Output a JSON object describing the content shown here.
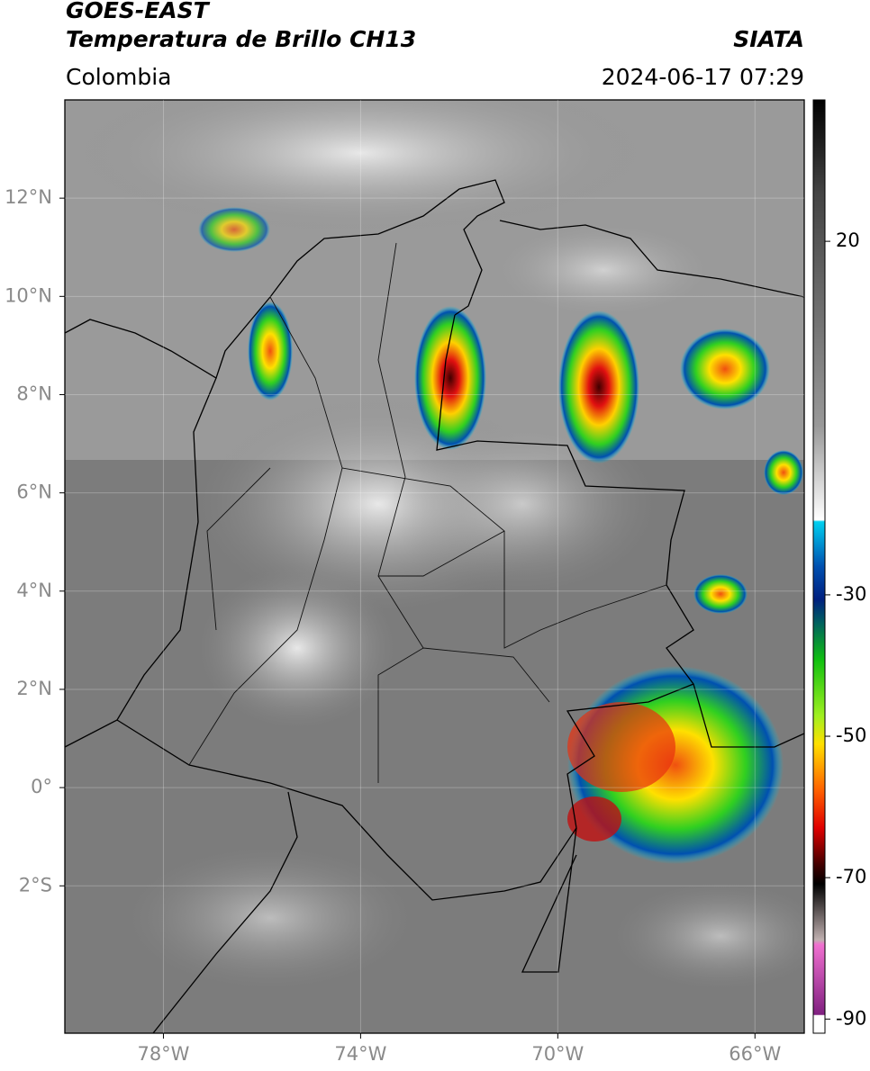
{
  "header": {
    "title": "GOES-EAST",
    "subtitle": "Temperatura de Brillo CH13",
    "source": "SIATA",
    "region": "Colombia",
    "timestamp": "2024-06-17 07:29"
  },
  "map": {
    "xlim": [
      -80,
      -65
    ],
    "ylim": [
      -5,
      14
    ],
    "xticks": [
      {
        "value": -78,
        "label": "78°W"
      },
      {
        "value": -74,
        "label": "74°W"
      },
      {
        "value": -70,
        "label": "70°W"
      },
      {
        "value": -66,
        "label": "66°W"
      }
    ],
    "yticks": [
      {
        "value": 12,
        "label": "12°N"
      },
      {
        "value": 10,
        "label": "10°N"
      },
      {
        "value": 8,
        "label": "8°N"
      },
      {
        "value": 6,
        "label": "6°N"
      },
      {
        "value": 4,
        "label": "4°N"
      },
      {
        "value": 2,
        "label": "2°N"
      },
      {
        "value": 0,
        "label": "0°"
      },
      {
        "value": -2,
        "label": "2°S"
      }
    ],
    "grid": true
  },
  "colorbar": {
    "clim": [
      -92,
      40
    ],
    "ticks": [
      20,
      -30,
      -50,
      -70,
      -90
    ]
  }
}
